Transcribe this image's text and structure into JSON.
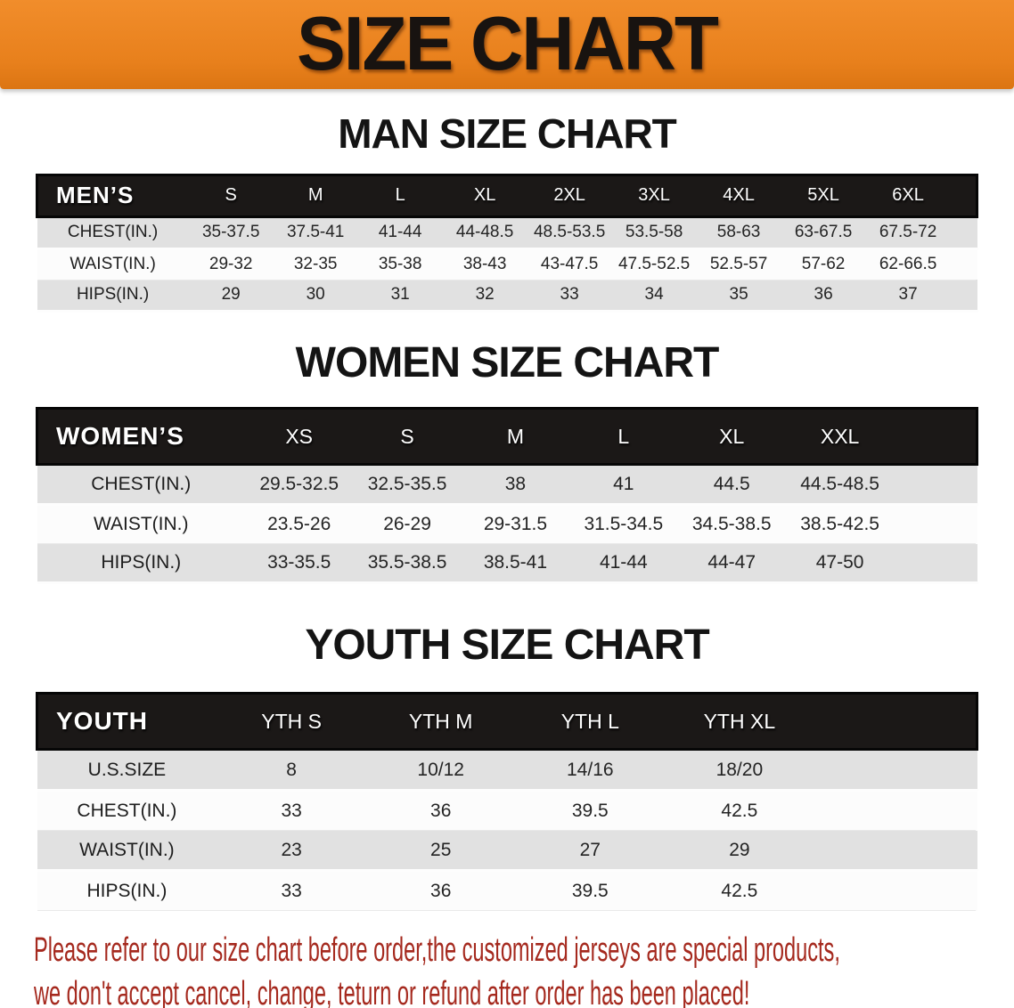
{
  "banner": {
    "title": "SIZE CHART"
  },
  "sections": [
    {
      "title": "MAN SIZE CHART",
      "corner_label": "MEN’S",
      "columns": [
        "S",
        "M",
        "L",
        "XL",
        "2XL",
        "3XL",
        "4XL",
        "5XL",
        "6XL"
      ],
      "rows": [
        {
          "label": "CHEST(IN.)",
          "values": [
            "35-37.5",
            "37.5-41",
            "41-44",
            "44-48.5",
            "48.5-53.5",
            "53.5-58",
            "58-63",
            "63-67.5",
            "67.5-72"
          ]
        },
        {
          "label": "WAIST(IN.)",
          "values": [
            "29-32",
            "32-35",
            "35-38",
            "38-43",
            "43-47.5",
            "47.5-52.5",
            "52.5-57",
            "57-62",
            "62-66.5"
          ]
        },
        {
          "label": "HIPS(IN.)",
          "values": [
            "29",
            "30",
            "31",
            "32",
            "33",
            "34",
            "35",
            "36",
            "37"
          ]
        }
      ]
    },
    {
      "title": "WOMEN SIZE CHART",
      "corner_label": "WOMEN’S",
      "columns": [
        "XS",
        "S",
        "M",
        "L",
        "XL",
        "XXL"
      ],
      "rows": [
        {
          "label": "CHEST(IN.)",
          "values": [
            "29.5-32.5",
            "32.5-35.5",
            "38",
            "41",
            "44.5",
            "44.5-48.5"
          ]
        },
        {
          "label": "WAIST(IN.)",
          "values": [
            "23.5-26",
            "26-29",
            "29-31.5",
            "31.5-34.5",
            "34.5-38.5",
            "38.5-42.5"
          ]
        },
        {
          "label": "HIPS(IN.)",
          "values": [
            "33-35.5",
            "35.5-38.5",
            "38.5-41",
            "41-44",
            "44-47",
            "47-50"
          ]
        }
      ]
    },
    {
      "title": "YOUTH SIZE CHART",
      "corner_label": "YOUTH",
      "columns": [
        "YTH S",
        "YTH M",
        "YTH L",
        "YTH XL"
      ],
      "rows": [
        {
          "label": "U.S.SIZE",
          "values": [
            "8",
            "10/12",
            "14/16",
            "18/20"
          ]
        },
        {
          "label": "CHEST(IN.)",
          "values": [
            "33",
            "36",
            "39.5",
            "42.5"
          ]
        },
        {
          "label": "WAIST(IN.)",
          "values": [
            "23",
            "25",
            "27",
            "29"
          ]
        },
        {
          "label": "HIPS(IN.)",
          "values": [
            "33",
            "36",
            "39.5",
            "42.5"
          ]
        }
      ]
    }
  ],
  "disclaimer": {
    "lines": [
      "Please refer to our size chart before order,the customized jerseys are special products,",
      "we don't accept cancel, change, teturn or refund after order has been placed!"
    ]
  },
  "colors": {
    "banner_orange": "#E8801C",
    "banner_orange_light": "#F18D2B",
    "band_black": "#1B1817",
    "row_gray": "#E1E1E1",
    "row_white": "#FCFCFC",
    "title_black": "#141414",
    "disclaimer_red": "#A5291E"
  }
}
